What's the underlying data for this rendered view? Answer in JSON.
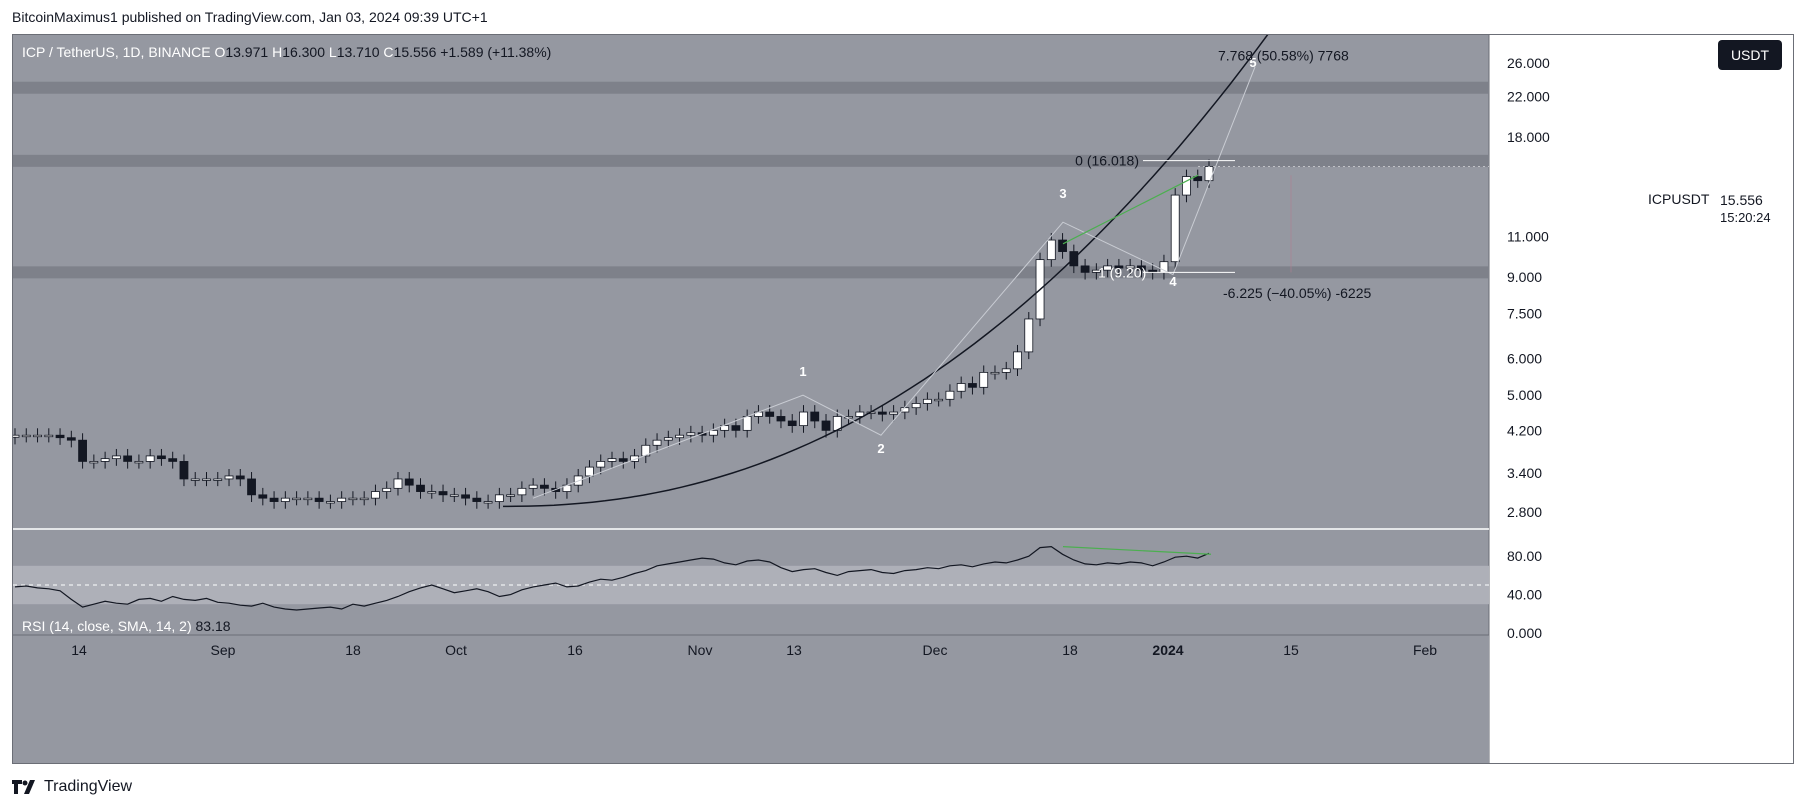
{
  "publisher": "BitcoinMaximus1 published on TradingView.com, Jan 03, 2024 09:39 UTC+1",
  "brand": "TradingView",
  "currency_button": "USDT",
  "symbol_tag": "ICPUSDT",
  "last_price": "15.556",
  "countdown": "15:20:24",
  "header": {
    "symbol": "ICP / TetherUS, 1D, BINANCE",
    "o_label": "O",
    "o": "13.971",
    "h_label": "H",
    "h": "16.300",
    "l_label": "L",
    "l": "13.710",
    "c_label": "C",
    "c": "15.556",
    "change": "+1.589 (+11.38%)"
  },
  "rsi_header": {
    "label": "RSI (14, close, SMA, 14, 2)",
    "value": "83.18"
  },
  "annotations": {
    "target": "7.768 (50.58%) 7768",
    "fib0": "0 (16.018)",
    "fib_low": "1 (9.20)",
    "drawdown": "-6.225 (−40.05%) -6225",
    "waves": [
      "1",
      "2",
      "3",
      "4",
      "5"
    ]
  },
  "colors": {
    "background": "#9598a1",
    "resistance_band": "#7e818a",
    "candle_up": "#ffffff",
    "candle_down": "#131722",
    "trendline": "#131722",
    "divergence": "#4caf50",
    "rsi_line": "#131722"
  },
  "chart_data": {
    "type": "candlestick",
    "title": "ICP / TetherUS, 1D, BINANCE",
    "y_scale": "log",
    "y_ticks": [
      "26.000",
      "22.000",
      "18.000",
      "15.556",
      "11.000",
      "9.000",
      "7.500",
      "6.000",
      "5.000",
      "4.200",
      "3.400",
      "2.800"
    ],
    "x_ticks": [
      "14",
      "Sep",
      "18",
      "Oct",
      "16",
      "Nov",
      "13",
      "Dec",
      "18",
      "2024",
      "15",
      "Feb"
    ],
    "resistance_levels": [
      23.0,
      16.0,
      9.2
    ],
    "closes_sampled": [
      4.1,
      4.1,
      4.1,
      4.1,
      4.05,
      4.0,
      3.6,
      3.6,
      3.65,
      3.7,
      3.6,
      3.6,
      3.7,
      3.65,
      3.6,
      3.3,
      3.3,
      3.3,
      3.3,
      3.35,
      3.3,
      3.05,
      3.0,
      2.95,
      3.0,
      3.0,
      3.0,
      2.95,
      2.95,
      3.0,
      3.0,
      3.0,
      3.1,
      3.15,
      3.3,
      3.2,
      3.1,
      3.1,
      3.05,
      3.05,
      3.0,
      2.95,
      2.95,
      3.05,
      3.05,
      3.15,
      3.2,
      3.15,
      3.1,
      3.2,
      3.35,
      3.5,
      3.6,
      3.65,
      3.6,
      3.7,
      3.9,
      4.0,
      4.05,
      4.1,
      4.15,
      4.1,
      4.2,
      4.3,
      4.2,
      4.5,
      4.6,
      4.5,
      4.4,
      4.3,
      4.6,
      4.4,
      4.2,
      4.5,
      4.5,
      4.6,
      4.6,
      4.55,
      4.6,
      4.7,
      4.8,
      4.9,
      4.9,
      5.1,
      5.3,
      5.2,
      5.6,
      5.6,
      5.7,
      6.2,
      7.3,
      9.8,
      10.8,
      10.2,
      9.5,
      9.2,
      9.3,
      9.5,
      9.4,
      9.5,
      9.3,
      9.2,
      9.7,
      13.5,
      14.8,
      14.5,
      15.56
    ],
    "rsi_ticks": [
      "80.00",
      "40.00",
      "0.000"
    ],
    "rsi_band": [
      70,
      30
    ],
    "rsi_mid": 50,
    "rsi_values": [
      48,
      49,
      47,
      46,
      44,
      35,
      27,
      30,
      33,
      31,
      30,
      35,
      36,
      33,
      38,
      35,
      34,
      36,
      32,
      31,
      29,
      28,
      31,
      27,
      25,
      24,
      25,
      26,
      27,
      25,
      30,
      28,
      31,
      34,
      38,
      43,
      47,
      50,
      46,
      42,
      44,
      46,
      43,
      38,
      40,
      45,
      48,
      50,
      52,
      48,
      49,
      53,
      56,
      55,
      58,
      62,
      65,
      70,
      72,
      74,
      76,
      78,
      77,
      73,
      71,
      75,
      76,
      74,
      68,
      64,
      66,
      67,
      63,
      60,
      64,
      65,
      66,
      63,
      62,
      65,
      66,
      68,
      67,
      70,
      71,
      69,
      72,
      74,
      73,
      76,
      80,
      89,
      90,
      82,
      76,
      72,
      71,
      73,
      72,
      74,
      73,
      70,
      74,
      79,
      80,
      78,
      83
    ]
  }
}
